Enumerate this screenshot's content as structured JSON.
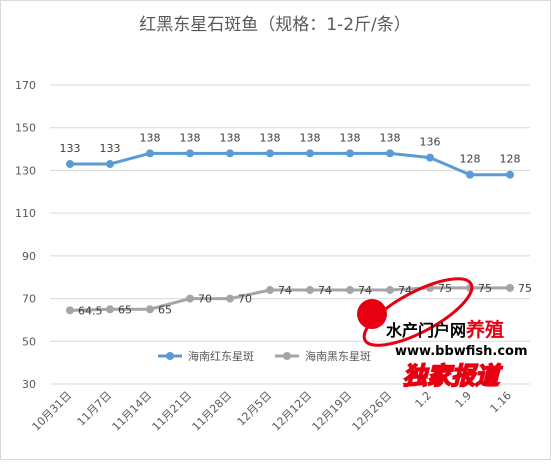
{
  "chart_data": {
    "type": "line",
    "title": "红黑东星石斑鱼（规格：1-2斤/条）",
    "xlabel": "",
    "ylabel": "",
    "categories": [
      "10月31日",
      "11月7日",
      "11月14日",
      "11月21日",
      "11月28日",
      "12月5日",
      "12月12日",
      "12月19日",
      "12月26日",
      "1.2",
      "1.9",
      "1.16"
    ],
    "ylim": [
      30,
      170
    ],
    "yticks": [
      30,
      50,
      70,
      90,
      110,
      130,
      150,
      170
    ],
    "grid": true,
    "legend_position": "bottom-center",
    "series": [
      {
        "name": "海南红东星斑",
        "color": "#5b9bd5",
        "values": [
          133,
          133,
          138,
          138,
          138,
          138,
          138,
          138,
          138,
          136,
          128,
          128
        ],
        "labels": [
          "133",
          "133",
          "138",
          "138",
          "138",
          "138",
          "138",
          "138",
          "138",
          "136",
          "128",
          "128"
        ]
      },
      {
        "name": "海南黑东星斑",
        "color": "#a5a5a5",
        "values": [
          64.5,
          65,
          65,
          70,
          70,
          74,
          74,
          74,
          74,
          75,
          75,
          75
        ],
        "labels": [
          "64.5",
          "65",
          "65",
          "70",
          "70",
          "74",
          "74",
          "74",
          "74",
          "75",
          "75",
          "75"
        ]
      }
    ]
  },
  "watermark": {
    "brand_text": "水产门户网",
    "brand_highlight": "养殖",
    "url": "www.bbwfish.com",
    "tagline": "独家报道",
    "brand_color": "#e60012"
  }
}
